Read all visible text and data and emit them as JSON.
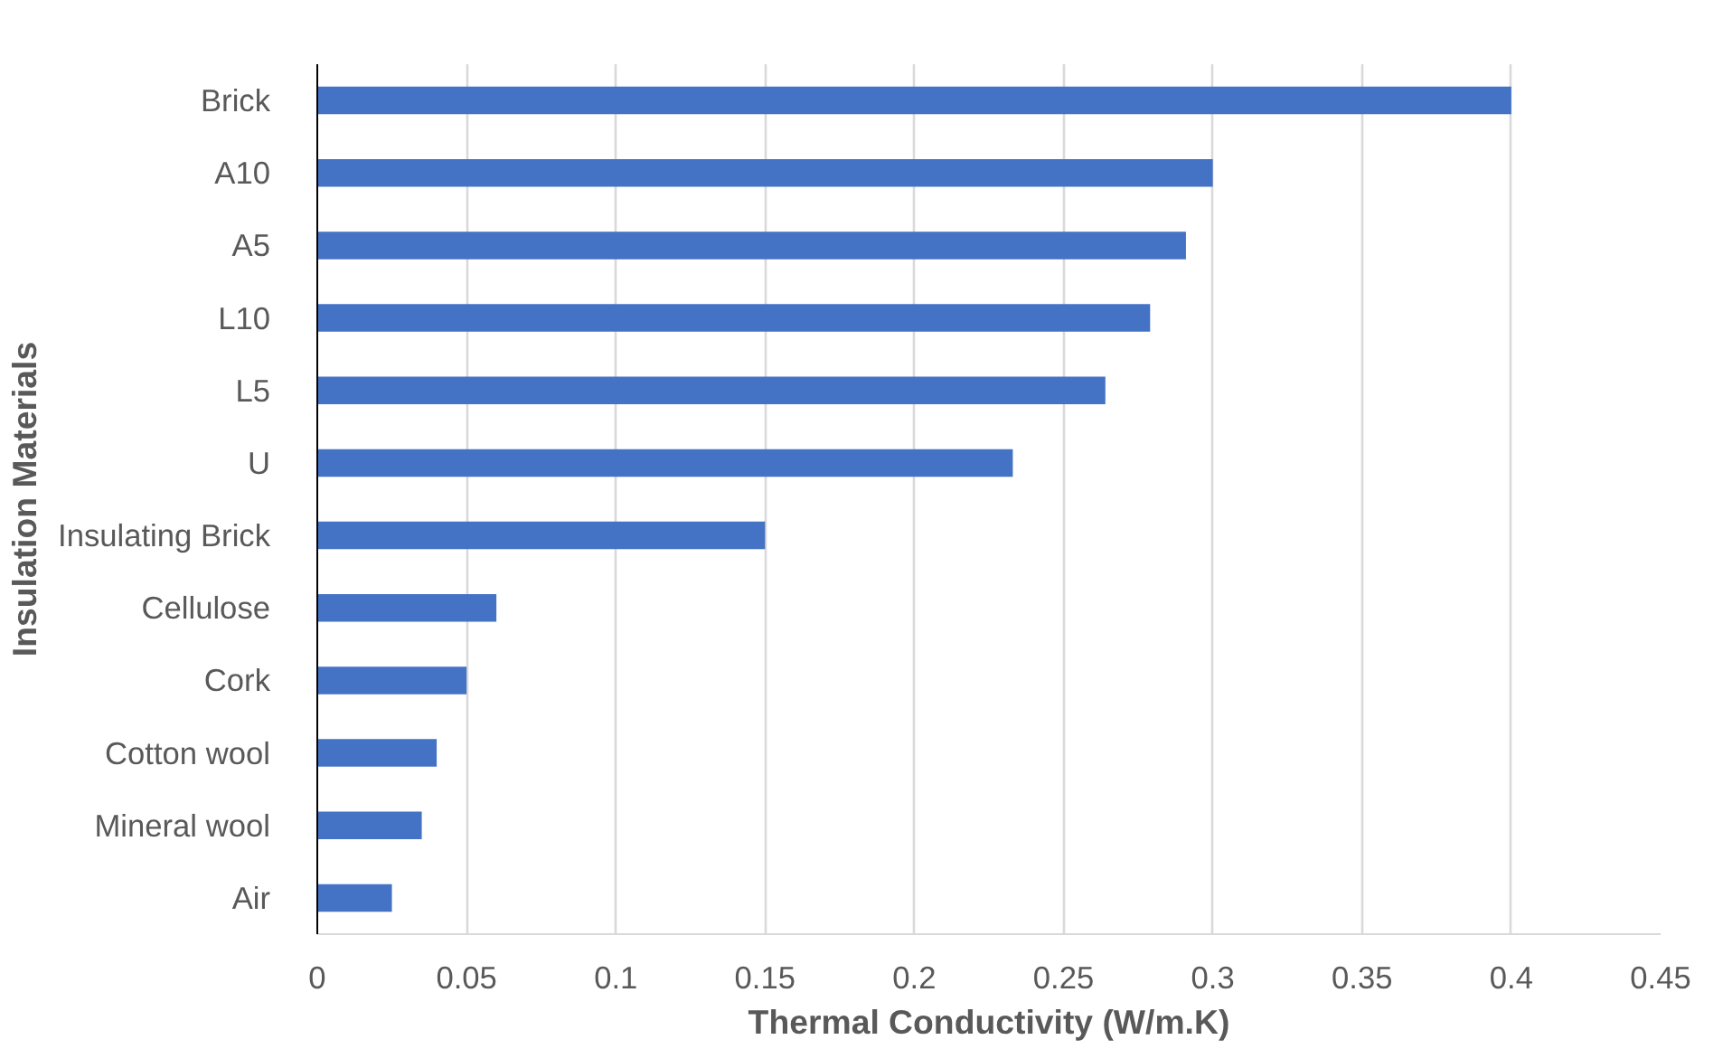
{
  "chart_data": {
    "type": "bar",
    "orientation": "horizontal",
    "xlabel": "Thermal Conductivity (W/m.K)",
    "ylabel": "Insulation Materials",
    "categories": [
      "Brick",
      "A10",
      "A5",
      "L10",
      "L5",
      "U",
      "Insulating Brick",
      "Cellulose",
      "Cork",
      "Cotton wool",
      "Mineral wool",
      "Air"
    ],
    "values": [
      0.4,
      0.3,
      0.291,
      0.279,
      0.264,
      0.233,
      0.15,
      0.06,
      0.05,
      0.04,
      0.035,
      0.025
    ],
    "color": "#4472c4",
    "xlim": [
      0,
      0.45
    ],
    "xticks": [
      0,
      0.05,
      0.1,
      0.15,
      0.2,
      0.25,
      0.3,
      0.35,
      0.4,
      0.45
    ],
    "grid": "x"
  }
}
